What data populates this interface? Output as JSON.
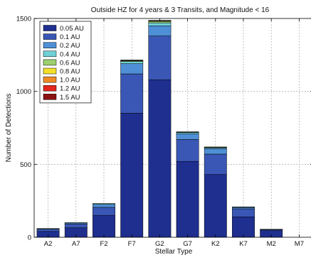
{
  "chart_data": {
    "type": "bar",
    "stacked": true,
    "title": "Outside HZ for 4 years & 3 Transits, and Magnitude < 16",
    "xlabel": "Stellar Type",
    "ylabel": "Number of Detections",
    "ylim": [
      0,
      1500
    ],
    "yticks": [
      0,
      500,
      1000,
      1500
    ],
    "grid": true,
    "legend_position": "top-left",
    "categories": [
      "A2",
      "A7",
      "F2",
      "F7",
      "G2",
      "G7",
      "K2",
      "K7",
      "M2",
      "M7"
    ],
    "series": [
      {
        "name": "0.05 AU",
        "color": "#1f2f8f",
        "values": [
          40,
          65,
          150,
          850,
          1080,
          520,
          430,
          140,
          45,
          0
        ]
      },
      {
        "name": "0.1 AU",
        "color": "#3a57b5",
        "values": [
          15,
          25,
          55,
          270,
          300,
          150,
          140,
          55,
          7,
          0
        ]
      },
      {
        "name": "0.2 AU",
        "color": "#4f8fd6",
        "values": [
          4,
          8,
          20,
          70,
          70,
          40,
          38,
          10,
          2,
          0
        ]
      },
      {
        "name": "0.4 AU",
        "color": "#6fd0d6",
        "values": [
          1,
          2,
          5,
          15,
          20,
          8,
          6,
          2,
          1,
          0
        ]
      },
      {
        "name": "0.6 AU",
        "color": "#9ccf6e",
        "values": [
          0,
          0,
          1,
          5,
          10,
          3,
          3,
          1,
          0,
          0
        ]
      },
      {
        "name": "0.8 AU",
        "color": "#f2e02a",
        "values": [
          0,
          0,
          0,
          2,
          3,
          1,
          1,
          0,
          0,
          0
        ]
      },
      {
        "name": "1.0 AU",
        "color": "#ef8a24",
        "values": [
          0,
          0,
          0,
          1,
          2,
          1,
          1,
          0,
          0,
          0
        ]
      },
      {
        "name": "1.2 AU",
        "color": "#e2261e",
        "values": [
          0,
          0,
          0,
          1,
          1,
          0,
          0,
          0,
          0,
          0
        ]
      },
      {
        "name": "1.5 AU",
        "color": "#8c1212",
        "values": [
          0,
          0,
          0,
          1,
          1,
          0,
          0,
          0,
          0,
          0
        ]
      }
    ]
  }
}
